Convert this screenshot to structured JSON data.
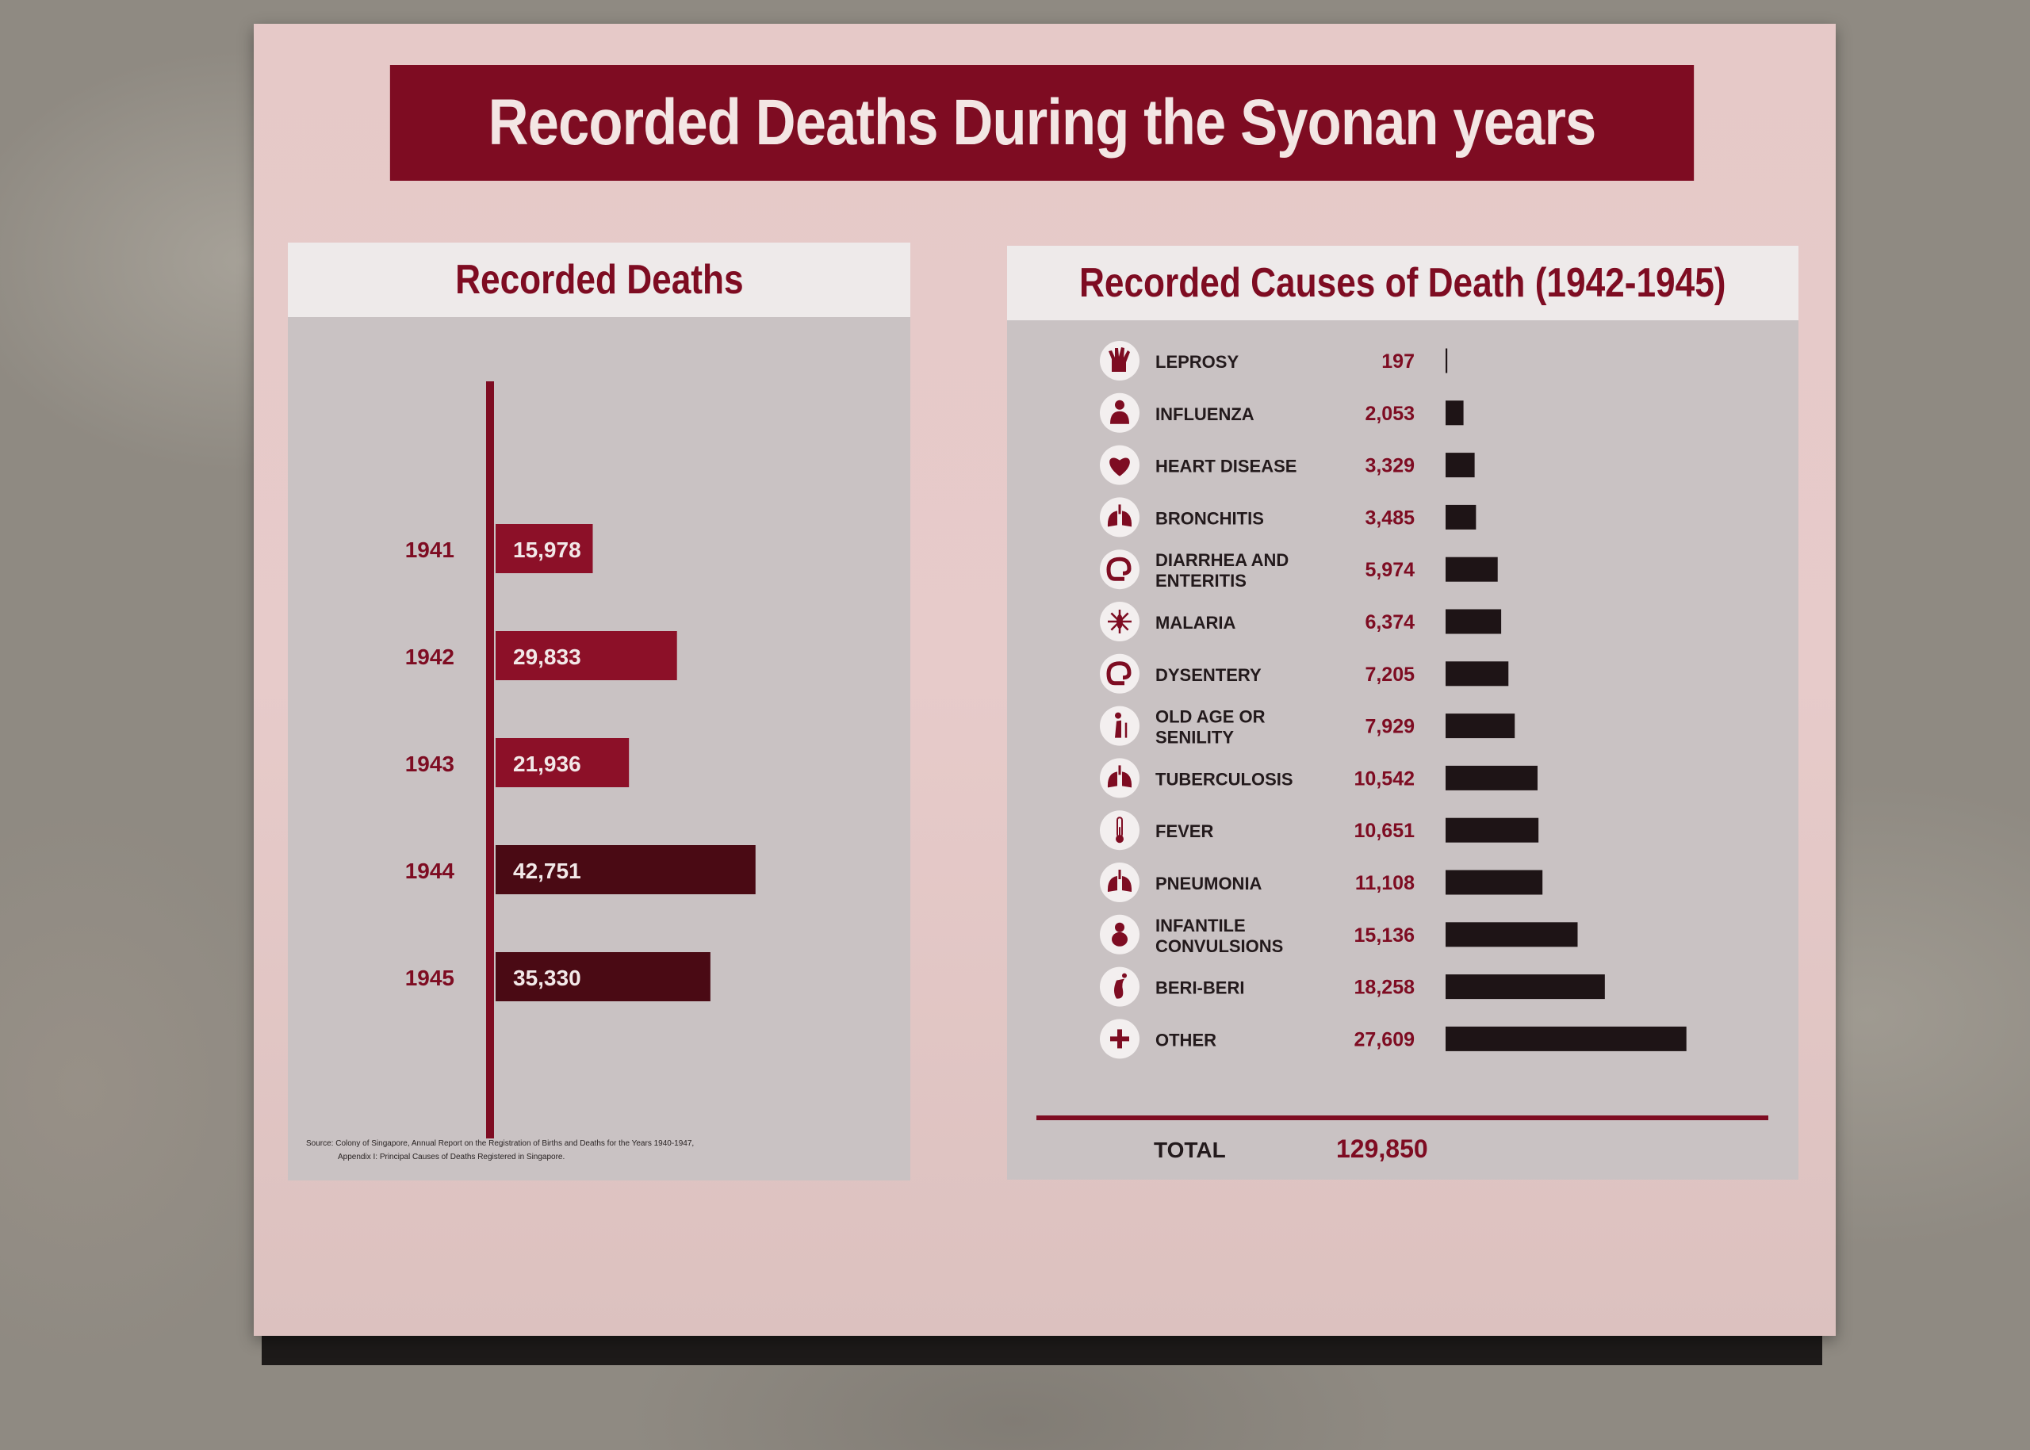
{
  "title": "Recorded Deaths During the Syonan years",
  "colors": {
    "banner": "#7e0c22",
    "year_bars": [
      "#8c1028",
      "#8c1028",
      "#8c1028",
      "#4a0a14",
      "#4a0a14"
    ],
    "cause_bars": "#1e1416",
    "axis": "#7e0c22",
    "value_text": "#7e0c22"
  },
  "source_note": {
    "line1": "Source: Colony of Singapore, Annual Report on the Registration of Births and Deaths for the Years 1940-1947,",
    "line2": "Appendix I: Principal Causes of Deaths Registered in Singapore."
  },
  "chart_data": [
    {
      "type": "bar",
      "orientation": "horizontal",
      "title": "Recorded Deaths",
      "categories": [
        "1941",
        "1942",
        "1943",
        "1944",
        "1945"
      ],
      "values": [
        15978,
        29833,
        21936,
        42751,
        35330
      ],
      "labels": [
        "15,978",
        "29,833",
        "21,936",
        "42,751",
        "35,330"
      ],
      "xlim": [
        0,
        45000
      ],
      "grid": false,
      "legend": "none"
    },
    {
      "type": "bar",
      "orientation": "horizontal",
      "title": "Recorded Causes of Death (1942-1945)",
      "categories": [
        "LEPROSY",
        "INFLUENZA",
        "HEART DISEASE",
        "BRONCHITIS",
        "DIARRHEA AND ENTERITIS",
        "MALARIA",
        "DYSENTERY",
        "OLD AGE OR SENILITY",
        "TUBERCULOSIS",
        "FEVER",
        "PNEUMONIA",
        "INFANTILE CONVULSIONS",
        "BERI-BERI",
        "OTHER"
      ],
      "label_lines": [
        [
          "LEPROSY"
        ],
        [
          "INFLUENZA"
        ],
        [
          "HEART DISEASE"
        ],
        [
          "BRONCHITIS"
        ],
        [
          "DIARRHEA AND",
          "ENTERITIS"
        ],
        [
          "MALARIA"
        ],
        [
          "DYSENTERY"
        ],
        [
          "OLD AGE OR",
          "SENILITY"
        ],
        [
          "TUBERCULOSIS"
        ],
        [
          "FEVER"
        ],
        [
          "PNEUMONIA"
        ],
        [
          "INFANTILE",
          "CONVULSIONS"
        ],
        [
          "BERI-BERI"
        ],
        [
          "OTHER"
        ]
      ],
      "icons": [
        "leprosy-hand-icon",
        "influenza-person-icon",
        "heart-icon",
        "lungs-icon",
        "intestine-icon",
        "mosquito-icon",
        "intestine-icon",
        "elderly-cane-icon",
        "lungs-icon",
        "thermometer-icon",
        "lungs-icon",
        "infant-icon",
        "foot-icon",
        "plus-icon"
      ],
      "values": [
        197,
        2053,
        3329,
        3485,
        5974,
        6374,
        7205,
        7929,
        10542,
        10651,
        11108,
        15136,
        18258,
        27609
      ],
      "labels": [
        "197",
        "2,053",
        "3,329",
        "3,485",
        "5,974",
        "6,374",
        "7,205",
        "7,929",
        "10,542",
        "10,651",
        "11,108",
        "15,136",
        "18,258",
        "27,609"
      ],
      "total_label": "TOTAL",
      "total_value": "129,850",
      "xlim": [
        0,
        30000
      ],
      "grid": false,
      "legend": "none"
    }
  ]
}
